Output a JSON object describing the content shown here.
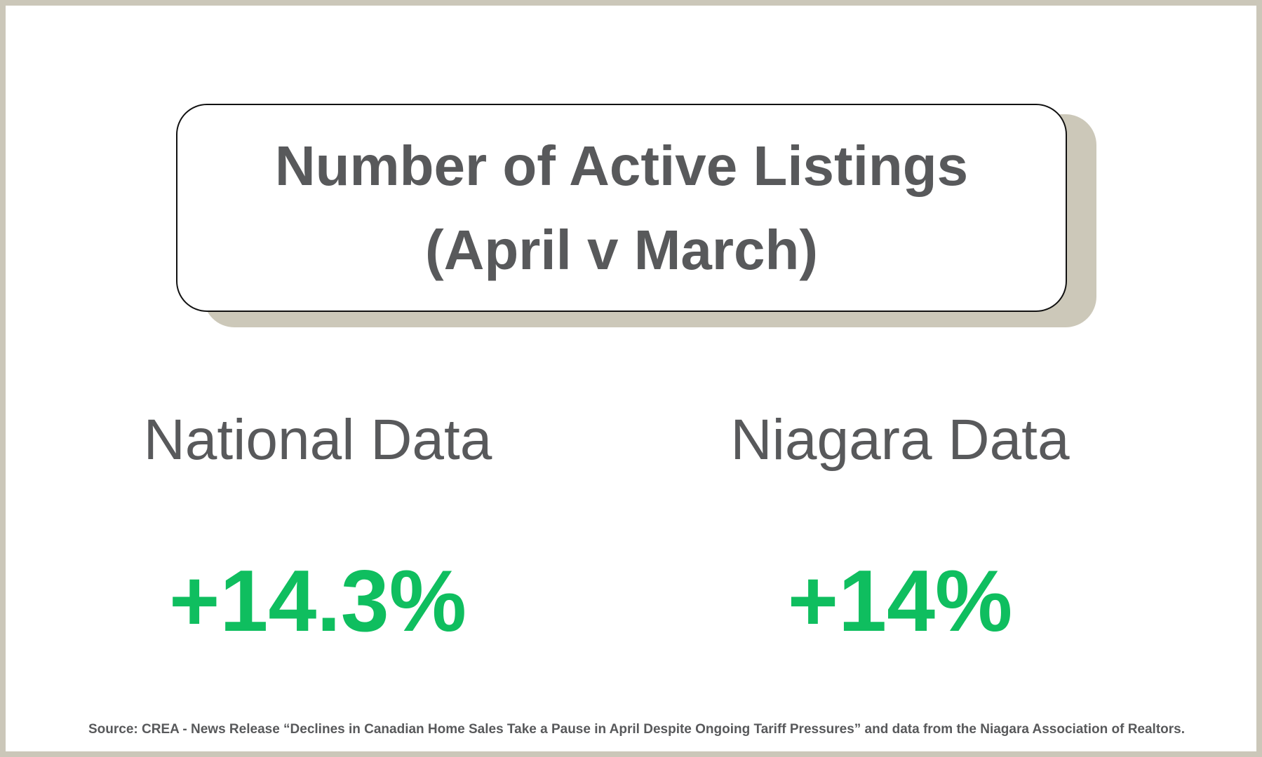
{
  "title": {
    "line1": "Number of Active Listings",
    "line2": "(April v March)"
  },
  "columns": [
    {
      "heading": "National Data",
      "value": "+14.3%"
    },
    {
      "heading": "Niagara Data",
      "value": "+14%"
    }
  ],
  "source": "Source: CREA - News Release “Declines in Canadian Home Sales Take a Pause in April Despite Ongoing Tariff Pressures” and data from the Niagara Association of Realtors.",
  "colors": {
    "text": "#58595b",
    "accent_green": "#0fbe5f",
    "frame": "#cbc7b9",
    "shadow": "#ccc8b9"
  }
}
